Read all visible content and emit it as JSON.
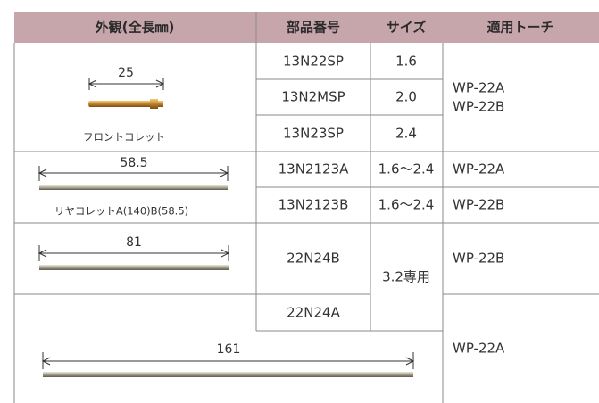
{
  "table": {
    "header": [
      "外観(全長㎜)",
      "部品番号",
      "サイズ",
      "適用トーチ"
    ],
    "images": [
      {
        "length": "25",
        "caption": "フロントコレット"
      },
      {
        "length": "58.5",
        "caption": "リヤコレットA(140)B(58.5)"
      },
      {
        "length": "81"
      },
      {
        "length": "161"
      }
    ],
    "parts": [
      "13N22SP",
      "13N2MSP",
      "13N23SP",
      "13N2123A",
      "13N2123B",
      "22N24B",
      "22N24A"
    ],
    "sizes": [
      "1.6",
      "2.0",
      "2.4",
      "1.6〜2.4",
      "1.6〜2.4",
      "3.2専用"
    ],
    "torches": [
      [
        "WP-22A",
        "WP-22B"
      ],
      [
        "WP-22A"
      ],
      [
        "WP-22B"
      ],
      [
        "WP-22B"
      ],
      [
        "WP-22A"
      ]
    ]
  }
}
